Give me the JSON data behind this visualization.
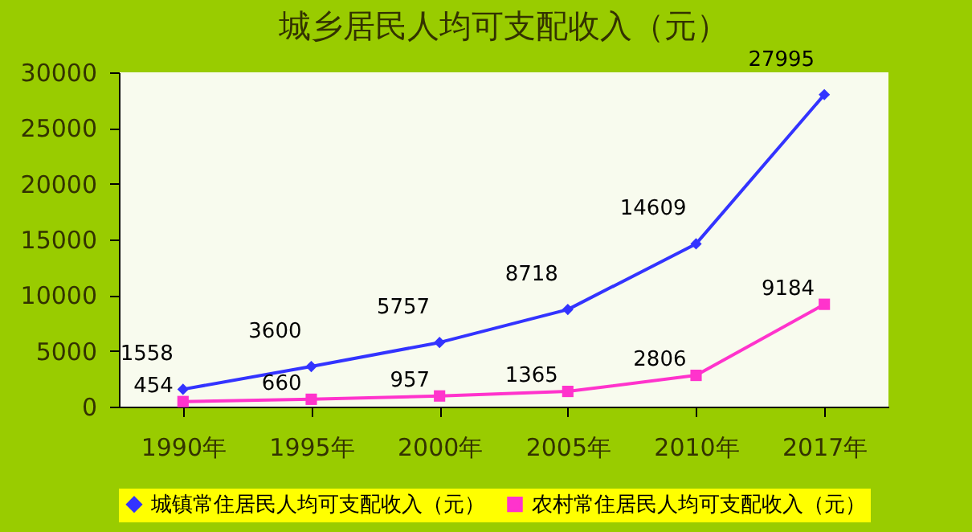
{
  "chart_data": {
    "type": "line",
    "title": "城乡居民人均可支配收入（元）",
    "categories": [
      "1990年",
      "1995年",
      "2000年",
      "2005年",
      "2010年",
      "2017年"
    ],
    "series": [
      {
        "name": "城镇常住居民人均可支配收入（元）",
        "color": "#3333ff",
        "marker": "diamond",
        "values": [
          1558,
          3600,
          5757,
          8718,
          14609,
          27995
        ]
      },
      {
        "name": "农村常住居民人均可支配收入（元）",
        "color": "#ff33cc",
        "marker": "square",
        "values": [
          454,
          660,
          957,
          1365,
          2806,
          9184
        ]
      }
    ],
    "ylim": [
      0,
      30000
    ],
    "yticks": [
      0,
      5000,
      10000,
      15000,
      20000,
      25000,
      30000
    ],
    "grid": false,
    "legend": "bottom",
    "data_labels": true
  }
}
